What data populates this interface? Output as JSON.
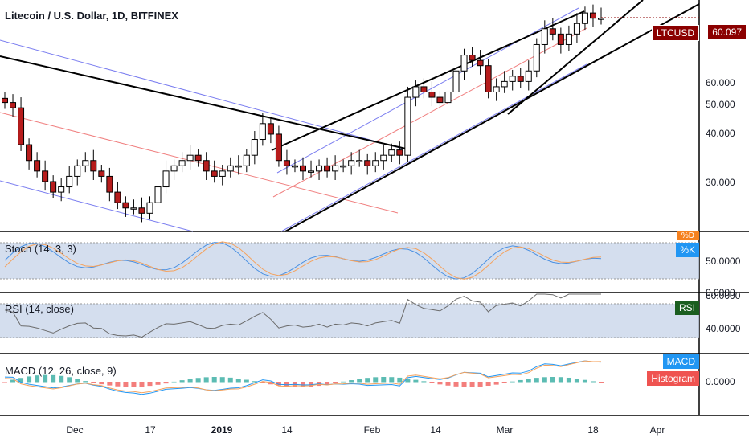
{
  "header": {
    "title": "Litecoin / U.S. Dollar, 1D, BITFINEX"
  },
  "price_tag": {
    "symbol": "LTCUSD",
    "value": "60.097"
  },
  "panes": {
    "stoch": {
      "title": "Stoch (14, 3, 3)",
      "tag_d": "%D",
      "tag_k": "%K",
      "ticks": [
        "50.0000",
        "0.0000"
      ]
    },
    "rsi": {
      "title": "RSI (14, close)",
      "tag": "RSI",
      "ticks": [
        "60.0000",
        "40.0000"
      ]
    },
    "macd": {
      "title": "MACD (12, 26, close, 9)",
      "tag_macd": "MACD",
      "tag_hist": "Histogram",
      "ticks": [
        "0.0000"
      ]
    }
  },
  "colors": {
    "up": "#ffffff",
    "down": "#b71c1c",
    "trend": "#000000",
    "channel_blue": "#7b7ef0",
    "channel_red": "#f08080",
    "stoch_k": "#4a90e2",
    "stoch_d": "#f5a25d",
    "band": "#c9d6ea",
    "rsi_line": "#6b6b6b",
    "hist_up": "#26a69a",
    "hist_down": "#ef5350",
    "price_tag_bg": "#8b0000"
  },
  "chart_data": {
    "type": "candlestick",
    "title": "Litecoin / U.S. Dollar, 1D, BITFINEX",
    "x_ticks": [
      "Dec",
      "17",
      "2019",
      "14",
      "Feb",
      "14",
      "Mar",
      "18",
      "Apr"
    ],
    "y_ticks": [
      "60.000",
      "50.000",
      "40.000",
      "30.000"
    ],
    "ylim": [
      20,
      63
    ],
    "close_series": [
      44,
      43,
      36,
      33,
      31,
      29,
      27,
      28,
      30,
      32,
      33,
      31,
      30,
      27,
      25,
      24,
      24,
      23,
      25,
      28,
      31,
      32,
      33,
      34,
      33,
      31,
      30,
      31,
      32,
      32,
      34,
      37,
      40,
      38,
      33,
      32,
      32,
      31,
      31,
      32,
      31,
      32,
      32,
      33,
      33,
      32,
      33,
      34,
      35,
      34,
      45,
      47,
      46,
      45,
      44,
      46,
      50,
      53,
      52,
      51,
      46,
      47,
      48,
      49,
      48,
      50,
      55,
      58,
      57,
      55,
      57,
      59,
      61,
      60,
      60
    ],
    "last_price": 60.097
  }
}
